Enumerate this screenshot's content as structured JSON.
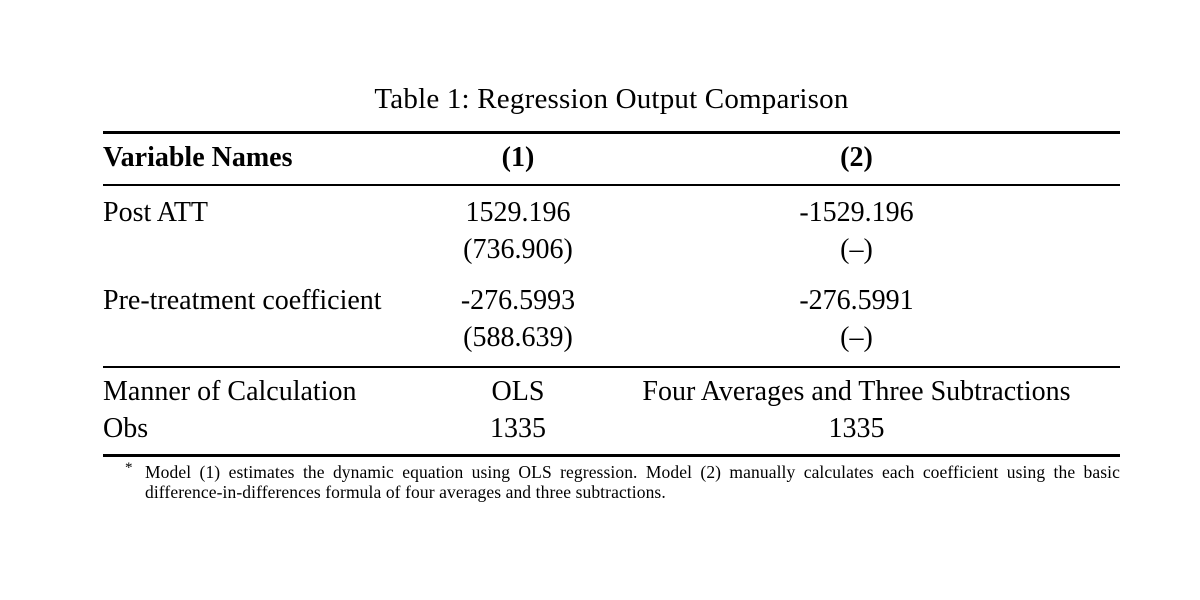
{
  "caption": "Table 1: Regression Output Comparison",
  "table": {
    "columns": [
      "Variable Names",
      "(1)",
      "(2)"
    ],
    "rows": [
      {
        "label": "Post ATT",
        "m1_value": "1529.196",
        "m1_se": "(736.906)",
        "m2_value": "-1529.196",
        "m2_se": "(–)"
      },
      {
        "label": "Pre-treatment coefficient",
        "m1_value": "-276.5993",
        "m1_se": "(588.639)",
        "m2_value": "-276.5991",
        "m2_se": "(–)"
      }
    ],
    "meta_rows": [
      {
        "label": "Manner of Calculation",
        "m1": "OLS",
        "m2": "Four Averages and Three Subtractions"
      },
      {
        "label": "Obs",
        "m1": "1335",
        "m2": "1335"
      }
    ]
  },
  "footnote": {
    "marker": "*",
    "text": "Model (1) estimates the dynamic equation using OLS regression. Model (2) manually calculates each coefficient using the basic difference-in-differences formula of four averages and three subtractions."
  }
}
